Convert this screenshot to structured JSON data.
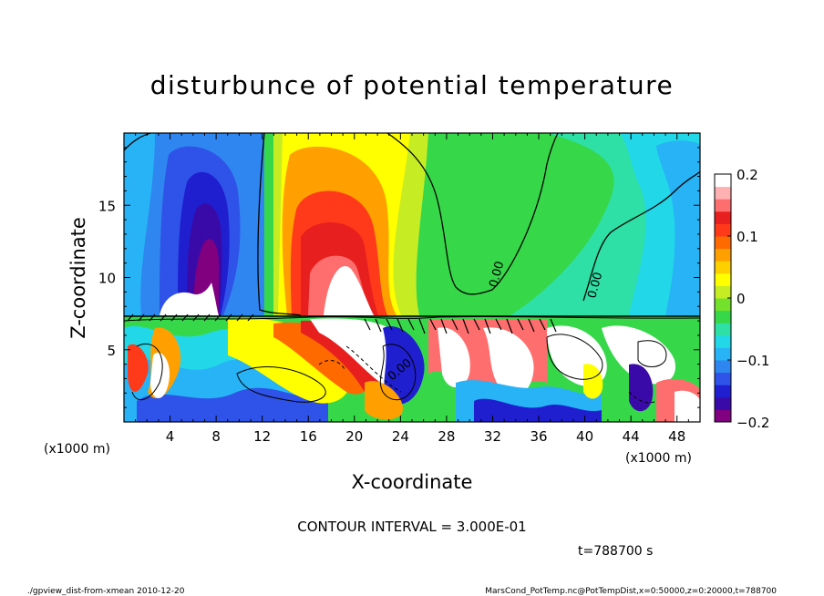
{
  "chart_data": {
    "type": "heatmap",
    "title": "disturbunce of potential temperature",
    "xlabel": "X-coordinate",
    "ylabel": "Z-coordinate",
    "x_unit_left": "(x1000 m)",
    "x_unit_right": "(x1000 m)",
    "xlim": [
      0,
      50
    ],
    "ylim": [
      0,
      20
    ],
    "x_ticks": [
      "4",
      "8",
      "12",
      "16",
      "20",
      "24",
      "28",
      "32",
      "36",
      "40",
      "44",
      "48"
    ],
    "y_ticks": [
      "5",
      "10",
      "15"
    ],
    "colorbar": {
      "range": [
        -0.2,
        0.2
      ],
      "tick_labels": [
        "0.2",
        "0.1",
        "0",
        "−0.1",
        "−0.2"
      ],
      "colors": [
        "#800080",
        "#3a0aa8",
        "#1f1fd0",
        "#2f52e8",
        "#2f86f0",
        "#27b3f5",
        "#22d8e8",
        "#2ee0a6",
        "#36d84a",
        "#73e02b",
        "#c6ec24",
        "#ffff00",
        "#ffd000",
        "#ffa000",
        "#ff6a00",
        "#ff3a1a",
        "#e81f1f",
        "#ff6e6e",
        "#ffb0b0",
        "#ffffff"
      ]
    },
    "contour_labels": [
      "0.00",
      "0.00",
      "0.00"
    ],
    "contour_interval_text": "CONTOUR INTERVAL = 3.000E-01",
    "time_text": "t=788700 s"
  },
  "footer": {
    "left": "./gpview_dist-from-xmean  2010-12-20",
    "right": "MarsCond_PotTemp.nc@PotTempDist,x=0:50000,z=0:20000,t=788700"
  }
}
